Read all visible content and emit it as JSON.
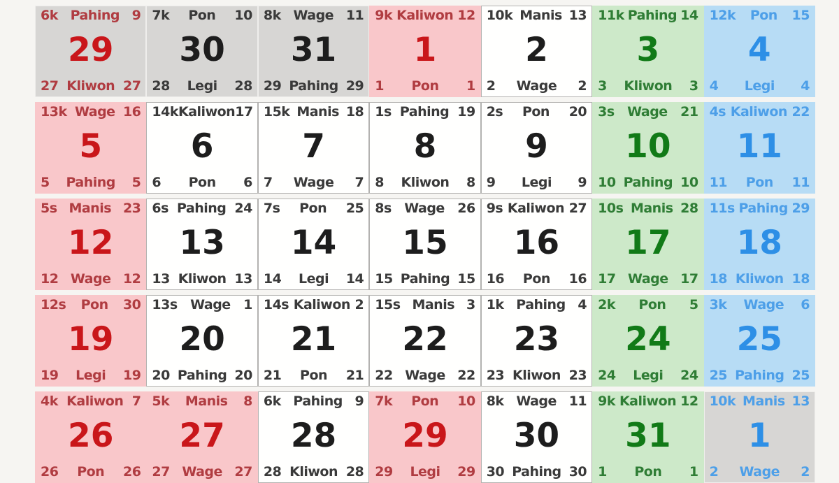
{
  "palette": {
    "page_background": "#f6f5f2",
    "adjacent_month_bg": "#d7d6d4",
    "sunday_holiday_bg": "#f9c7ca",
    "weekday_bg": "#fffffe",
    "friday_bg": "#cde9c9",
    "saturday_bg": "#b7dcf5",
    "red_text": "#c9161a",
    "green_text": "#117a17",
    "blue_text": "#2d8fe6"
  },
  "calendar": {
    "weeks": [
      {
        "cells": [
          {
            "bg": "gray",
            "fg": "red",
            "top": [
              "6k",
              "Pahing",
              "9"
            ],
            "day": "29",
            "bottom": [
              "27",
              "Kliwon",
              "27"
            ]
          },
          {
            "bg": "gray",
            "fg": "black",
            "top": [
              "7k",
              "Pon",
              "10"
            ],
            "day": "30",
            "bottom": [
              "28",
              "Legi",
              "28"
            ]
          },
          {
            "bg": "gray",
            "fg": "black",
            "top": [
              "8k",
              "Wage",
              "11"
            ],
            "day": "31",
            "bottom": [
              "29",
              "Pahing",
              "29"
            ]
          },
          {
            "bg": "pink",
            "fg": "red",
            "top": [
              "9k",
              "Kaliwon",
              "12"
            ],
            "day": "1",
            "bottom": [
              "1",
              "Pon",
              "1"
            ]
          },
          {
            "bg": "white",
            "fg": "black",
            "top": [
              "10k",
              "Manis",
              "13"
            ],
            "day": "2",
            "bottom": [
              "2",
              "Wage",
              "2"
            ]
          },
          {
            "bg": "green",
            "fg": "green",
            "top": [
              "11k",
              "Pahing",
              "14"
            ],
            "day": "3",
            "bottom": [
              "3",
              "Kliwon",
              "3"
            ]
          },
          {
            "bg": "blue",
            "fg": "blue",
            "top": [
              "12k",
              "Pon",
              "15"
            ],
            "day": "4",
            "bottom": [
              "4",
              "Legi",
              "4"
            ]
          }
        ]
      },
      {
        "cells": [
          {
            "bg": "pink",
            "fg": "red",
            "top": [
              "13k",
              "Wage",
              "16"
            ],
            "day": "5",
            "bottom": [
              "5",
              "Pahing",
              "5"
            ]
          },
          {
            "bg": "white",
            "fg": "black",
            "top": [
              "14k",
              "Kaliwon",
              "17"
            ],
            "day": "6",
            "bottom": [
              "6",
              "Pon",
              "6"
            ]
          },
          {
            "bg": "white",
            "fg": "black",
            "top": [
              "15k",
              "Manis",
              "18"
            ],
            "day": "7",
            "bottom": [
              "7",
              "Wage",
              "7"
            ]
          },
          {
            "bg": "white",
            "fg": "black",
            "top": [
              "1s",
              "Pahing",
              "19"
            ],
            "day": "8",
            "bottom": [
              "8",
              "Kliwon",
              "8"
            ]
          },
          {
            "bg": "white",
            "fg": "black",
            "top": [
              "2s",
              "Pon",
              "20"
            ],
            "day": "9",
            "bottom": [
              "9",
              "Legi",
              "9"
            ]
          },
          {
            "bg": "green",
            "fg": "green",
            "top": [
              "3s",
              "Wage",
              "21"
            ],
            "day": "10",
            "bottom": [
              "10",
              "Pahing",
              "10"
            ]
          },
          {
            "bg": "blue",
            "fg": "blue",
            "top": [
              "4s",
              "Kaliwon",
              "22"
            ],
            "day": "11",
            "bottom": [
              "11",
              "Pon",
              "11"
            ]
          }
        ]
      },
      {
        "cells": [
          {
            "bg": "pink",
            "fg": "red",
            "top": [
              "5s",
              "Manis",
              "23"
            ],
            "day": "12",
            "bottom": [
              "12",
              "Wage",
              "12"
            ]
          },
          {
            "bg": "white",
            "fg": "black",
            "top": [
              "6s",
              "Pahing",
              "24"
            ],
            "day": "13",
            "bottom": [
              "13",
              "Kliwon",
              "13"
            ]
          },
          {
            "bg": "white",
            "fg": "black",
            "top": [
              "7s",
              "Pon",
              "25"
            ],
            "day": "14",
            "bottom": [
              "14",
              "Legi",
              "14"
            ]
          },
          {
            "bg": "white",
            "fg": "black",
            "top": [
              "8s",
              "Wage",
              "26"
            ],
            "day": "15",
            "bottom": [
              "15",
              "Pahing",
              "15"
            ]
          },
          {
            "bg": "white",
            "fg": "black",
            "top": [
              "9s",
              "Kaliwon",
              "27"
            ],
            "day": "16",
            "bottom": [
              "16",
              "Pon",
              "16"
            ]
          },
          {
            "bg": "green",
            "fg": "green",
            "top": [
              "10s",
              "Manis",
              "28"
            ],
            "day": "17",
            "bottom": [
              "17",
              "Wage",
              "17"
            ]
          },
          {
            "bg": "blue",
            "fg": "blue",
            "top": [
              "11s",
              "Pahing",
              "29"
            ],
            "day": "18",
            "bottom": [
              "18",
              "Kliwon",
              "18"
            ]
          }
        ]
      },
      {
        "cells": [
          {
            "bg": "pink",
            "fg": "red",
            "top": [
              "12s",
              "Pon",
              "30"
            ],
            "day": "19",
            "bottom": [
              "19",
              "Legi",
              "19"
            ]
          },
          {
            "bg": "white",
            "fg": "black",
            "top": [
              "13s",
              "Wage",
              "1"
            ],
            "day": "20",
            "bottom": [
              "20",
              "Pahing",
              "20"
            ]
          },
          {
            "bg": "white",
            "fg": "black",
            "top": [
              "14s",
              "Kaliwon",
              "2"
            ],
            "day": "21",
            "bottom": [
              "21",
              "Pon",
              "21"
            ]
          },
          {
            "bg": "white",
            "fg": "black",
            "top": [
              "15s",
              "Manis",
              "3"
            ],
            "day": "22",
            "bottom": [
              "22",
              "Wage",
              "22"
            ]
          },
          {
            "bg": "white",
            "fg": "black",
            "top": [
              "1k",
              "Pahing",
              "4"
            ],
            "day": "23",
            "bottom": [
              "23",
              "Kliwon",
              "23"
            ]
          },
          {
            "bg": "green",
            "fg": "green",
            "top": [
              "2k",
              "Pon",
              "5"
            ],
            "day": "24",
            "bottom": [
              "24",
              "Legi",
              "24"
            ]
          },
          {
            "bg": "blue",
            "fg": "blue",
            "top": [
              "3k",
              "Wage",
              "6"
            ],
            "day": "25",
            "bottom": [
              "25",
              "Pahing",
              "25"
            ]
          }
        ]
      },
      {
        "cells": [
          {
            "bg": "pink",
            "fg": "red",
            "top": [
              "4k",
              "Kaliwon",
              "7"
            ],
            "day": "26",
            "bottom": [
              "26",
              "Pon",
              "26"
            ]
          },
          {
            "bg": "pink",
            "fg": "red",
            "top": [
              "5k",
              "Manis",
              "8"
            ],
            "day": "27",
            "bottom": [
              "27",
              "Wage",
              "27"
            ]
          },
          {
            "bg": "white",
            "fg": "black",
            "top": [
              "6k",
              "Pahing",
              "9"
            ],
            "day": "28",
            "bottom": [
              "28",
              "Kliwon",
              "28"
            ]
          },
          {
            "bg": "pink",
            "fg": "red",
            "top": [
              "7k",
              "Pon",
              "10"
            ],
            "day": "29",
            "bottom": [
              "29",
              "Legi",
              "29"
            ]
          },
          {
            "bg": "white",
            "fg": "black",
            "top": [
              "8k",
              "Wage",
              "11"
            ],
            "day": "30",
            "bottom": [
              "30",
              "Pahing",
              "30"
            ]
          },
          {
            "bg": "green",
            "fg": "green",
            "top": [
              "9k",
              "Kaliwon",
              "12"
            ],
            "day": "31",
            "bottom": [
              "1",
              "Pon",
              "1"
            ]
          },
          {
            "bg": "gray",
            "fg": "blue",
            "top": [
              "10k",
              "Manis",
              "13"
            ],
            "day": "1",
            "bottom": [
              "2",
              "Wage",
              "2"
            ]
          }
        ]
      }
    ]
  }
}
